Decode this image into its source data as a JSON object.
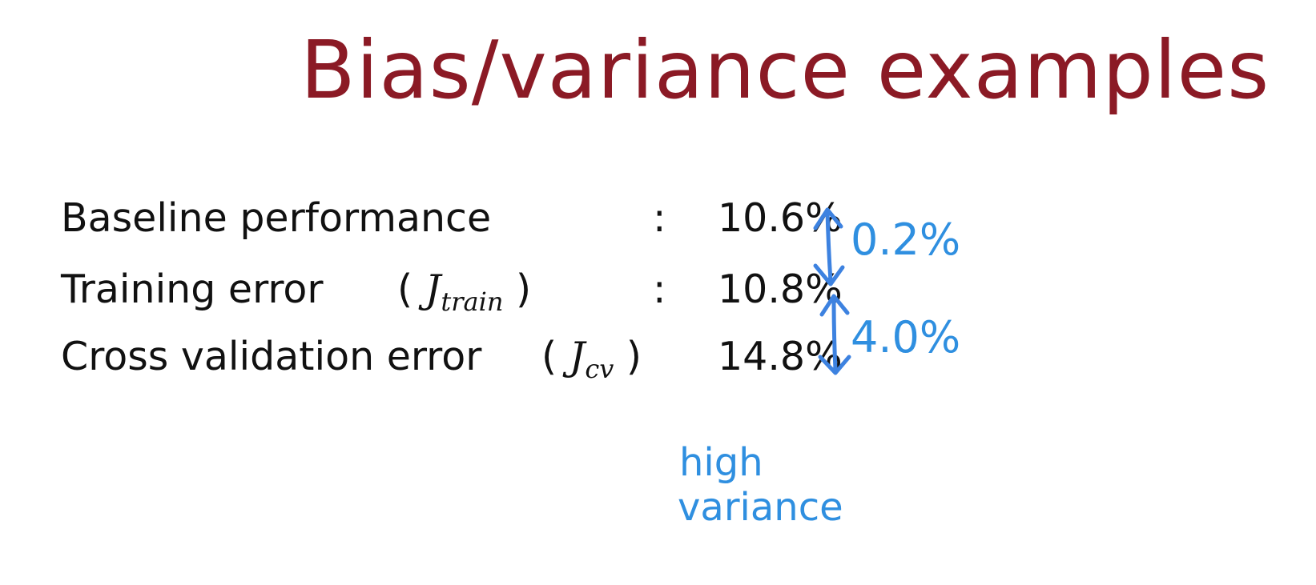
{
  "slide": {
    "title": "Bias/variance examples",
    "rows": [
      {
        "label": "Baseline performance",
        "symbol_base": "",
        "symbol_sub": "",
        "value": "10.6%"
      },
      {
        "label": "Training error",
        "symbol_base": "J",
        "symbol_sub": "train",
        "value": "10.8%"
      },
      {
        "label": "Cross validation error",
        "symbol_base": "J",
        "symbol_sub": "cv",
        "value": "14.8%"
      }
    ],
    "annotations": {
      "gap_1": "0.2%",
      "gap_2": "4.0%",
      "conclusion_line_1": "high",
      "conclusion_line_2": "variance",
      "ink_color": "#2f8fe0"
    },
    "title_color": "#8b1a25"
  }
}
